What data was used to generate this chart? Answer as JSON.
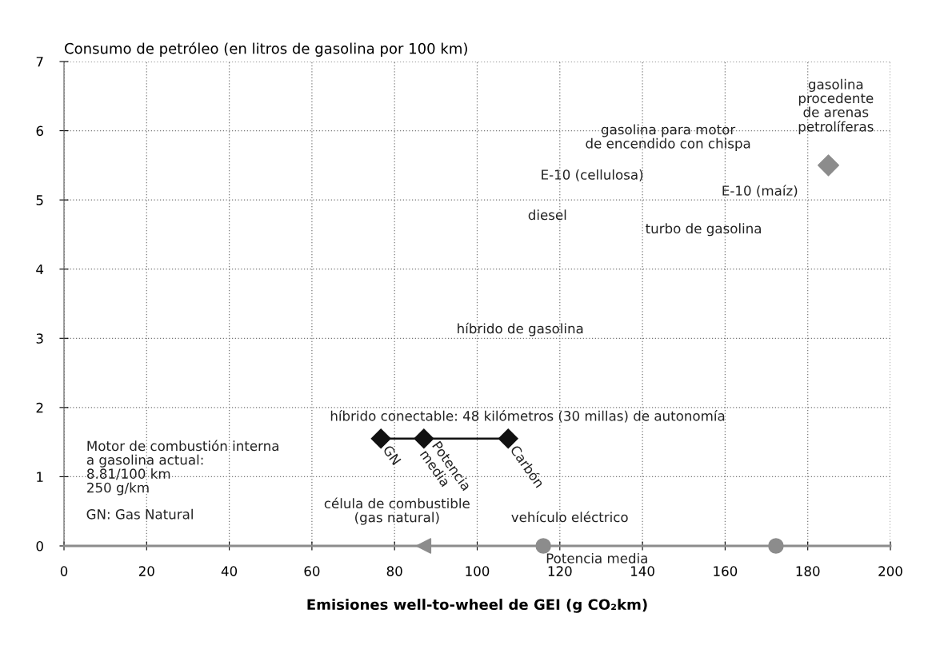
{
  "chart_data": {
    "type": "scatter",
    "ylabel": "Consumo de petróleo (en litros de gasolina por 100 km)",
    "xlabel": "Emisiones well-to-wheel de GEI (g CO₂km)",
    "xlim": [
      0,
      200
    ],
    "ylim": [
      0,
      7
    ],
    "xticks": [
      0,
      20,
      40,
      60,
      80,
      100,
      120,
      140,
      160,
      180,
      200
    ],
    "yticks": [
      0,
      1,
      2,
      3,
      4,
      5,
      6,
      7
    ],
    "grid": true,
    "legend": false,
    "series": [
      {
        "type": "line",
        "color": "#111111",
        "marker": "diamond",
        "x": [
          76.7,
          87.1,
          107.5
        ],
        "values": [
          1.55,
          1.55,
          1.55
        ],
        "value_labels": [
          "GN",
          "Potencia\nmedia",
          "Carbón"
        ]
      },
      {
        "color": "#8c8c8c",
        "marker": "diamond",
        "x": [
          185
        ],
        "values": [
          5.5
        ]
      },
      {
        "color": "#8c8c8c",
        "marker": "triangle",
        "x": [
          87
        ],
        "values": [
          0
        ]
      },
      {
        "color": "#8c8c8c",
        "marker": "circle",
        "x": [
          116,
          172.3
        ],
        "values": [
          0,
          0
        ]
      }
    ],
    "annotations": [
      "gasolina\nprocedente\nde arenas\npetrolíferas",
      "gasolina para motor\nde encendido con chispa",
      "E-10 (cellulosa)",
      "E-10 (maíz)",
      "diesel",
      "turbo de gasolina",
      "híbrido de gasolina",
      "híbrido conectable: 48 kilómetros (30 millas) de autonomía",
      "Motor de combustión interna\na gasolina actual:\n8.81/100 km\n250 g/km",
      "GN: Gas Natural",
      "célula de combustible\n(gas natural)",
      "vehículo eléctrico",
      "Potencia media"
    ]
  }
}
